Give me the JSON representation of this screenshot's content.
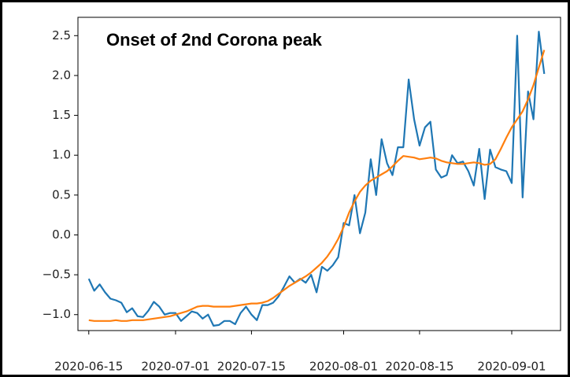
{
  "chart_data": {
    "type": "line",
    "annotation": "Onset of 2nd Corona peak",
    "x": [
      "2020-06-15",
      "2020-06-16",
      "2020-06-17",
      "2020-06-18",
      "2020-06-19",
      "2020-06-20",
      "2020-06-21",
      "2020-06-22",
      "2020-06-23",
      "2020-06-24",
      "2020-06-25",
      "2020-06-26",
      "2020-06-27",
      "2020-06-28",
      "2020-06-29",
      "2020-06-30",
      "2020-07-01",
      "2020-07-02",
      "2020-07-03",
      "2020-07-04",
      "2020-07-05",
      "2020-07-06",
      "2020-07-07",
      "2020-07-08",
      "2020-07-09",
      "2020-07-10",
      "2020-07-11",
      "2020-07-12",
      "2020-07-13",
      "2020-07-14",
      "2020-07-15",
      "2020-07-16",
      "2020-07-17",
      "2020-07-18",
      "2020-07-19",
      "2020-07-20",
      "2020-07-21",
      "2020-07-22",
      "2020-07-23",
      "2020-07-24",
      "2020-07-25",
      "2020-07-26",
      "2020-07-27",
      "2020-07-28",
      "2020-07-29",
      "2020-07-30",
      "2020-07-31",
      "2020-08-01",
      "2020-08-02",
      "2020-08-03",
      "2020-08-04",
      "2020-08-05",
      "2020-08-06",
      "2020-08-07",
      "2020-08-08",
      "2020-08-09",
      "2020-08-10",
      "2020-08-11",
      "2020-08-12",
      "2020-08-13",
      "2020-08-14",
      "2020-08-15",
      "2020-08-16",
      "2020-08-17",
      "2020-08-18",
      "2020-08-19",
      "2020-08-20",
      "2020-08-21",
      "2020-08-22",
      "2020-08-23",
      "2020-08-24",
      "2020-08-25",
      "2020-08-26",
      "2020-08-27",
      "2020-08-28",
      "2020-08-29",
      "2020-08-30",
      "2020-08-31",
      "2020-09-01",
      "2020-09-02",
      "2020-09-03",
      "2020-09-04",
      "2020-09-05",
      "2020-09-06",
      "2020-09-07"
    ],
    "series": [
      {
        "color": "#1f77b4",
        "values": [
          -0.55,
          -0.7,
          -0.62,
          -0.72,
          -0.8,
          -0.82,
          -0.85,
          -0.97,
          -0.92,
          -1.02,
          -1.03,
          -0.95,
          -0.84,
          -0.9,
          -1.0,
          -0.98,
          -0.98,
          -1.08,
          -1.02,
          -0.96,
          -0.98,
          -1.05,
          -1.0,
          -1.14,
          -1.13,
          -1.08,
          -1.08,
          -1.12,
          -0.98,
          -0.9,
          -1.0,
          -1.07,
          -0.88,
          -0.88,
          -0.85,
          -0.77,
          -0.65,
          -0.52,
          -0.6,
          -0.55,
          -0.6,
          -0.5,
          -0.72,
          -0.4,
          -0.45,
          -0.38,
          -0.28,
          0.15,
          0.12,
          0.5,
          0.02,
          0.28,
          0.95,
          0.5,
          1.2,
          0.9,
          0.75,
          1.1,
          1.1,
          1.95,
          1.45,
          1.12,
          1.35,
          1.42,
          0.82,
          0.72,
          0.75,
          1.0,
          0.9,
          0.92,
          0.8,
          0.62,
          1.08,
          0.45,
          1.07,
          0.85,
          0.82,
          0.8,
          0.65,
          2.5,
          0.47,
          1.8,
          1.45,
          2.55,
          2.02
        ]
      },
      {
        "color": "#ff7f0e",
        "values": [
          -1.07,
          -1.08,
          -1.08,
          -1.08,
          -1.08,
          -1.07,
          -1.08,
          -1.08,
          -1.07,
          -1.07,
          -1.07,
          -1.06,
          -1.05,
          -1.04,
          -1.03,
          -1.02,
          -1.0,
          -0.98,
          -0.96,
          -0.93,
          -0.9,
          -0.89,
          -0.89,
          -0.9,
          -0.9,
          -0.9,
          -0.9,
          -0.89,
          -0.88,
          -0.87,
          -0.86,
          -0.86,
          -0.85,
          -0.83,
          -0.79,
          -0.74,
          -0.69,
          -0.64,
          -0.6,
          -0.56,
          -0.52,
          -0.47,
          -0.41,
          -0.35,
          -0.27,
          -0.17,
          -0.05,
          0.1,
          0.28,
          0.42,
          0.54,
          0.62,
          0.68,
          0.72,
          0.76,
          0.8,
          0.86,
          0.93,
          0.99,
          0.98,
          0.97,
          0.95,
          0.96,
          0.97,
          0.96,
          0.93,
          0.91,
          0.9,
          0.89,
          0.89,
          0.9,
          0.91,
          0.9,
          0.88,
          0.89,
          0.95,
          1.08,
          1.22,
          1.35,
          1.45,
          1.55,
          1.7,
          1.88,
          2.1,
          2.32
        ]
      }
    ],
    "xlim": [
      "2020-06-13",
      "2020-09-10"
    ],
    "xticks": [
      "2020-06-15",
      "2020-07-01",
      "2020-07-15",
      "2020-08-01",
      "2020-08-15",
      "2020-09-01"
    ],
    "ylim": [
      -1.2,
      2.73
    ],
    "yticks": [
      {
        "value": -1.0,
        "label": "−1.0"
      },
      {
        "value": -0.5,
        "label": "−0.5"
      },
      {
        "value": 0,
        "label": "0.0"
      },
      0.5,
      {
        "value": 1.0,
        "label": "1.0"
      },
      1.5,
      {
        "value": 2.0,
        "label": "2.0"
      },
      2.5
    ],
    "grid": false
  }
}
